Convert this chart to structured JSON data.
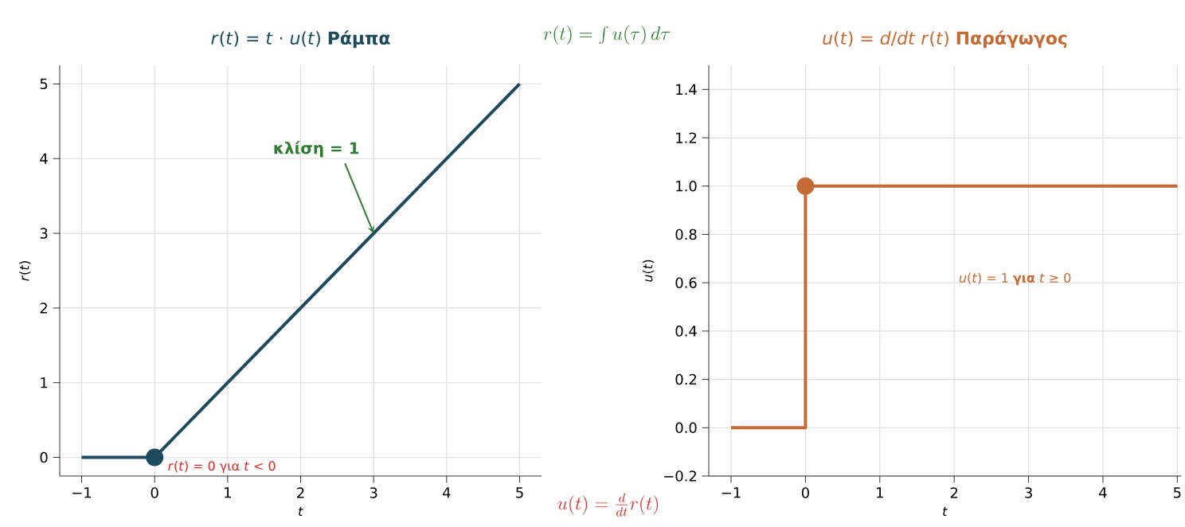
{
  "chart_data": [
    {
      "type": "line",
      "title": "*r*(*t*) = *t* · *u*(*t*)  **Ράμπα**",
      "xlabel": "*t*",
      "ylabel": "*r*(*t*)",
      "series": [
        {
          "color": "#1d4a5c",
          "x": [
            -1,
            0,
            5
          ],
          "values": [
            0,
            0,
            5
          ]
        },
        {
          "type": "scatter",
          "color": "#1d4a5c",
          "x": [
            0
          ],
          "values": [
            0
          ],
          "marker": "circle"
        }
      ],
      "xlim": [
        -1.3,
        5.3
      ],
      "ylim": [
        -0.25,
        5.25
      ],
      "xticks": [
        {
          "value": -1,
          "label": "−1"
        },
        0,
        1,
        2,
        3,
        4,
        5
      ],
      "yticks": [
        0,
        1,
        2,
        3,
        4,
        5
      ],
      "grid": true,
      "annotations": [
        {
          "text": "**κλίση = 1**",
          "x": 3,
          "y": 3
        },
        {
          "text": "*r*(*t*) = 0 για *t* < 0",
          "x": 0,
          "y": 0
        },
        "r(t) = \\int u(\\tau)\\,d\\tau",
        "u(t) = \\frac{d}{dt} r(t)"
      ]
    },
    {
      "type": "step",
      "title": "*u*(*t*) = *d*/*dt* *r*(*t*)  **Παράγωγος**",
      "xlabel": "*t*",
      "ylabel": "*u*(*t*)",
      "series": [
        {
          "color": "#c46a35",
          "x": [
            -1,
            0,
            5
          ],
          "values": [
            0,
            1,
            1
          ]
        },
        {
          "type": "scatter",
          "color": "#c46a35",
          "x": [
            0
          ],
          "values": [
            1
          ],
          "marker": "circle"
        }
      ],
      "xlim": [
        -1.3,
        5.05
      ],
      "ylim": [
        -0.2,
        1.5
      ],
      "xticks": [
        {
          "value": -1,
          "label": "−1"
        },
        0,
        1,
        2,
        3,
        4,
        5
      ],
      "yticks": [
        {
          "value": -0.2,
          "label": "−0.2"
        },
        {
          "value": 0,
          "label": "0.0"
        },
        {
          "value": 0.2,
          "label": "0.2"
        },
        {
          "value": 0.4,
          "label": "0.4"
        },
        {
          "value": 0.6,
          "label": "0.6"
        },
        {
          "value": 0.8,
          "label": "0.8"
        },
        {
          "value": 1,
          "label": "1.0"
        },
        {
          "value": 1.2,
          "label": "1.2"
        },
        {
          "value": 1.4,
          "label": "1.4"
        }
      ],
      "grid": true,
      "annotations": [
        "*u*(*t*) = 1 **για** *t* ≥ 0"
      ]
    }
  ]
}
